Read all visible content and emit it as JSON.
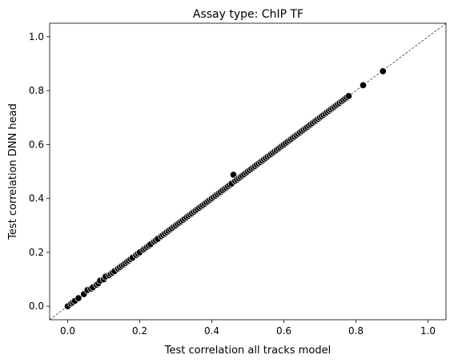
{
  "chart_data": {
    "type": "scatter",
    "title": "Assay type: ChIP TF",
    "xlabel": "Test correlation all tracks model",
    "ylabel": "Test correlation DNN head",
    "xlim": [
      -0.05,
      1.05
    ],
    "ylim": [
      -0.05,
      1.05
    ],
    "xticks": [
      0.0,
      0.2,
      0.4,
      0.6,
      0.8,
      1.0
    ],
    "yticks": [
      0.0,
      0.2,
      0.4,
      0.6,
      0.8,
      1.0
    ],
    "xtick_labels": [
      "0.0",
      "0.2",
      "0.4",
      "0.6",
      "0.8",
      "1.0"
    ],
    "ytick_labels": [
      "0.0",
      "0.2",
      "0.4",
      "0.6",
      "0.8",
      "1.0"
    ],
    "reference_line": "y = x, dashed",
    "grid": false,
    "legend": "none",
    "marker_color": "#000000",
    "marker_edge_color": "#ffffff",
    "points": [
      [
        0.0,
        0.0
      ],
      [
        0.01,
        0.01
      ],
      [
        0.015,
        0.015
      ],
      [
        0.02,
        0.02
      ],
      [
        0.03,
        0.03
      ],
      [
        0.045,
        0.045
      ],
      [
        0.055,
        0.06
      ],
      [
        0.065,
        0.065
      ],
      [
        0.07,
        0.07
      ],
      [
        0.08,
        0.08
      ],
      [
        0.085,
        0.085
      ],
      [
        0.09,
        0.095
      ],
      [
        0.1,
        0.1
      ],
      [
        0.105,
        0.11
      ],
      [
        0.115,
        0.115
      ],
      [
        0.12,
        0.12
      ],
      [
        0.125,
        0.125
      ],
      [
        0.13,
        0.13
      ],
      [
        0.14,
        0.14
      ],
      [
        0.145,
        0.145
      ],
      [
        0.15,
        0.15
      ],
      [
        0.155,
        0.155
      ],
      [
        0.16,
        0.16
      ],
      [
        0.165,
        0.165
      ],
      [
        0.17,
        0.17
      ],
      [
        0.175,
        0.175
      ],
      [
        0.18,
        0.18
      ],
      [
        0.19,
        0.19
      ],
      [
        0.195,
        0.195
      ],
      [
        0.2,
        0.2
      ],
      [
        0.21,
        0.21
      ],
      [
        0.215,
        0.215
      ],
      [
        0.22,
        0.22
      ],
      [
        0.225,
        0.225
      ],
      [
        0.23,
        0.23
      ],
      [
        0.24,
        0.24
      ],
      [
        0.245,
        0.245
      ],
      [
        0.25,
        0.25
      ],
      [
        0.26,
        0.26
      ],
      [
        0.265,
        0.265
      ],
      [
        0.27,
        0.27
      ],
      [
        0.275,
        0.275
      ],
      [
        0.28,
        0.28
      ],
      [
        0.285,
        0.285
      ],
      [
        0.29,
        0.29
      ],
      [
        0.295,
        0.295
      ],
      [
        0.3,
        0.3
      ],
      [
        0.305,
        0.305
      ],
      [
        0.31,
        0.31
      ],
      [
        0.315,
        0.315
      ],
      [
        0.32,
        0.32
      ],
      [
        0.325,
        0.325
      ],
      [
        0.33,
        0.33
      ],
      [
        0.335,
        0.335
      ],
      [
        0.34,
        0.34
      ],
      [
        0.345,
        0.345
      ],
      [
        0.35,
        0.35
      ],
      [
        0.355,
        0.355
      ],
      [
        0.36,
        0.36
      ],
      [
        0.365,
        0.365
      ],
      [
        0.37,
        0.37
      ],
      [
        0.375,
        0.375
      ],
      [
        0.38,
        0.38
      ],
      [
        0.385,
        0.385
      ],
      [
        0.39,
        0.39
      ],
      [
        0.395,
        0.395
      ],
      [
        0.4,
        0.4
      ],
      [
        0.405,
        0.405
      ],
      [
        0.41,
        0.41
      ],
      [
        0.415,
        0.415
      ],
      [
        0.42,
        0.42
      ],
      [
        0.425,
        0.425
      ],
      [
        0.43,
        0.43
      ],
      [
        0.435,
        0.435
      ],
      [
        0.44,
        0.44
      ],
      [
        0.445,
        0.445
      ],
      [
        0.45,
        0.45
      ],
      [
        0.455,
        0.455
      ],
      [
        0.46,
        0.488
      ],
      [
        0.465,
        0.465
      ],
      [
        0.47,
        0.47
      ],
      [
        0.475,
        0.475
      ],
      [
        0.48,
        0.48
      ],
      [
        0.485,
        0.485
      ],
      [
        0.49,
        0.49
      ],
      [
        0.495,
        0.495
      ],
      [
        0.5,
        0.5
      ],
      [
        0.505,
        0.505
      ],
      [
        0.51,
        0.51
      ],
      [
        0.515,
        0.515
      ],
      [
        0.52,
        0.52
      ],
      [
        0.525,
        0.525
      ],
      [
        0.53,
        0.53
      ],
      [
        0.535,
        0.535
      ],
      [
        0.54,
        0.54
      ],
      [
        0.545,
        0.545
      ],
      [
        0.55,
        0.55
      ],
      [
        0.555,
        0.555
      ],
      [
        0.56,
        0.56
      ],
      [
        0.565,
        0.565
      ],
      [
        0.57,
        0.57
      ],
      [
        0.575,
        0.575
      ],
      [
        0.58,
        0.58
      ],
      [
        0.585,
        0.585
      ],
      [
        0.59,
        0.59
      ],
      [
        0.595,
        0.595
      ],
      [
        0.6,
        0.6
      ],
      [
        0.605,
        0.605
      ],
      [
        0.61,
        0.61
      ],
      [
        0.615,
        0.615
      ],
      [
        0.62,
        0.62
      ],
      [
        0.625,
        0.625
      ],
      [
        0.63,
        0.63
      ],
      [
        0.635,
        0.635
      ],
      [
        0.64,
        0.64
      ],
      [
        0.645,
        0.645
      ],
      [
        0.65,
        0.65
      ],
      [
        0.655,
        0.655
      ],
      [
        0.66,
        0.66
      ],
      [
        0.665,
        0.665
      ],
      [
        0.67,
        0.67
      ],
      [
        0.675,
        0.675
      ],
      [
        0.68,
        0.68
      ],
      [
        0.685,
        0.685
      ],
      [
        0.69,
        0.69
      ],
      [
        0.695,
        0.695
      ],
      [
        0.7,
        0.7
      ],
      [
        0.705,
        0.705
      ],
      [
        0.71,
        0.71
      ],
      [
        0.715,
        0.715
      ],
      [
        0.72,
        0.72
      ],
      [
        0.725,
        0.725
      ],
      [
        0.73,
        0.73
      ],
      [
        0.735,
        0.735
      ],
      [
        0.74,
        0.74
      ],
      [
        0.745,
        0.745
      ],
      [
        0.75,
        0.75
      ],
      [
        0.755,
        0.755
      ],
      [
        0.76,
        0.76
      ],
      [
        0.765,
        0.765
      ],
      [
        0.77,
        0.77
      ],
      [
        0.775,
        0.775
      ],
      [
        0.78,
        0.78
      ],
      [
        0.82,
        0.82
      ],
      [
        0.875,
        0.872
      ]
    ]
  }
}
